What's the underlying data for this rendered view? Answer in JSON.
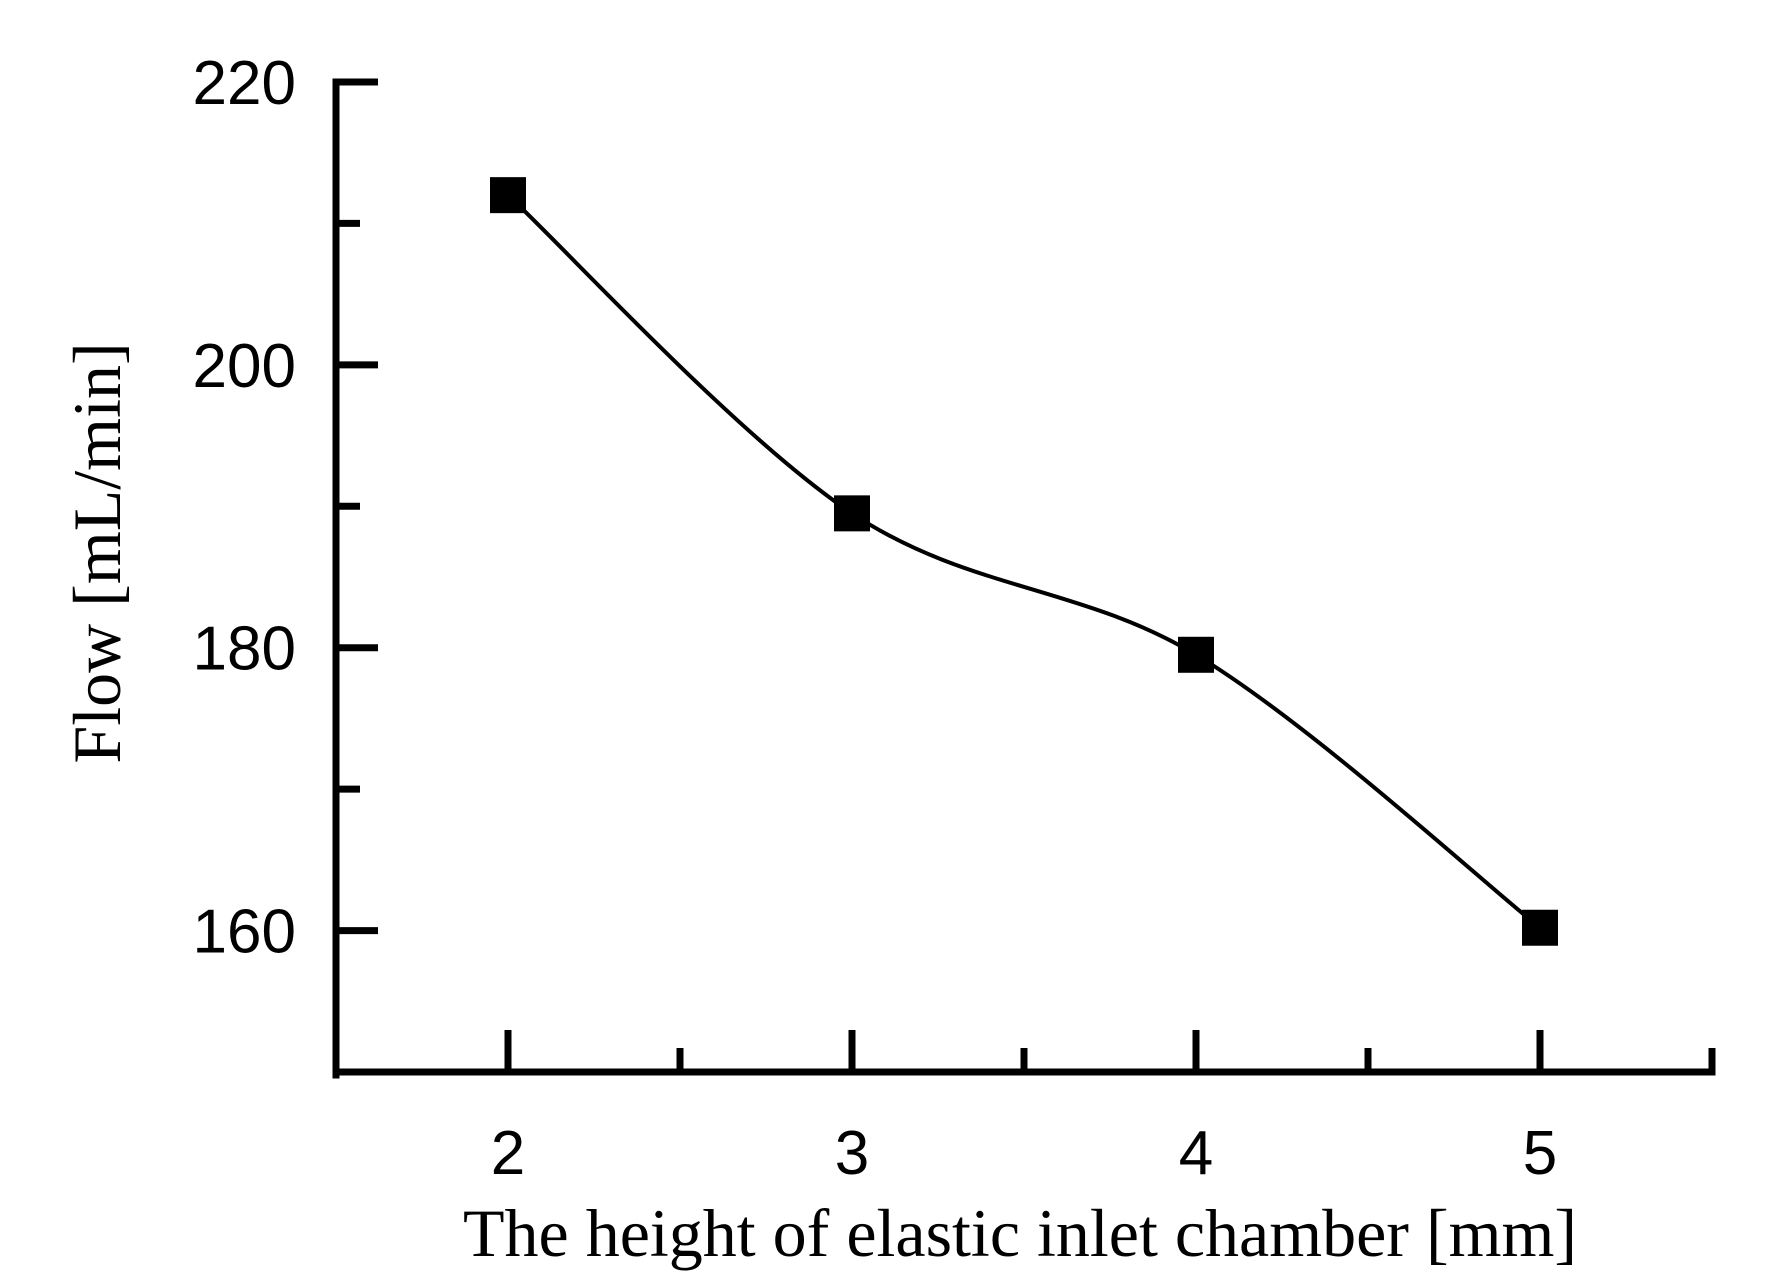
{
  "chart_data": {
    "type": "line",
    "title": "",
    "xlabel": "The height of elastic inlet chamber  [mm]",
    "ylabel": "Flow [mL/min]",
    "x": [
      2,
      3,
      4,
      5
    ],
    "series": [
      {
        "values": [
          212,
          189.5,
          179.5,
          160.2
        ],
        "marker": "square",
        "smooth": true
      }
    ],
    "xlim": [
      1.5,
      5.5
    ],
    "ylim": [
      150,
      220
    ],
    "x_ticks": [
      2,
      3,
      4,
      5
    ],
    "x_tick_labels": [
      "2",
      "3",
      "4",
      "5"
    ],
    "y_ticks": [
      160,
      180,
      200,
      220
    ],
    "y_tick_labels": [
      "160",
      "180",
      "200",
      "220"
    ],
    "y_minor_ticks": [
      170,
      190,
      210
    ],
    "x_minor_ticks": [
      2.5,
      3.5,
      4.5
    ],
    "grid": false,
    "legend": "none",
    "colors": {
      "line": "#000000",
      "marker": "#000000",
      "axis": "#000000"
    }
  }
}
